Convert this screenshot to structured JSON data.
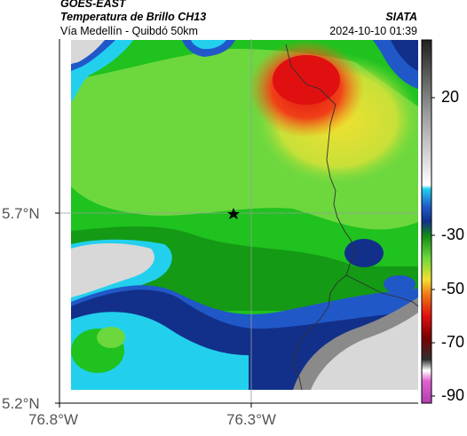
{
  "header": {
    "satellite": "GOES-EAST",
    "product": "Temperatura de Brillo CH13",
    "org": "SIATA",
    "route": "Vía Medellín - Quibdó 50km",
    "datetime": "2024-10-10 01:39"
  },
  "axes": {
    "lat_ticks": [
      "5.7°N",
      "5.2°N"
    ],
    "lon_ticks": [
      "76.8°W",
      "76.3°W"
    ]
  },
  "colorbar": {
    "ticks": [
      "20",
      "-30",
      "-50",
      "-70",
      "-90"
    ]
  },
  "map": {
    "marker": "star-marker",
    "colors": {
      "warm_gray": "#8a8a8a",
      "light_gray": "#d8d8d8",
      "cyan": "#22d0ee",
      "blue": "#2058c8",
      "navy": "#12308a",
      "dark_green": "#128c12",
      "green": "#1fc21f",
      "light_green": "#6cd83e",
      "yellow": "#f2e030",
      "orange": "#f07a18",
      "red": "#e01010",
      "magenta": "#c040b0"
    }
  }
}
